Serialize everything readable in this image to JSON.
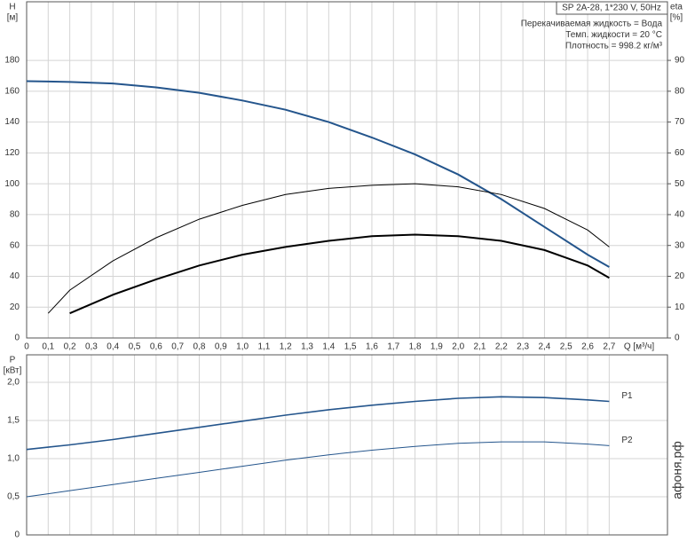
{
  "chart_data": [
    {
      "type": "line",
      "y_label": "H",
      "y_unit": "[м]",
      "y2_label": "eta",
      "y2_unit": "[%]",
      "x_label": "Q [м³/ч]",
      "header": "SP 2A-28, 1*230 V, 50Hz",
      "notes": [
        "Перекачиваемая жидкость = Вода",
        "Темп. жидкости = 20 °C",
        "Плотность = 998.2 кг/м³"
      ],
      "xlim": [
        0,
        2.97
      ],
      "ylim": [
        0,
        218
      ],
      "y2lim": [
        0,
        109
      ],
      "grid": true,
      "xticks": [
        0,
        {
          "value": 0.1,
          "label": "0,1"
        },
        {
          "value": 0.2,
          "label": "0,2"
        },
        {
          "value": 0.3,
          "label": "0,3"
        },
        {
          "value": 0.4,
          "label": "0,4"
        },
        {
          "value": 0.5,
          "label": "0,5"
        },
        {
          "value": 0.6,
          "label": "0,6"
        },
        {
          "value": 0.7,
          "label": "0,7"
        },
        {
          "value": 0.8,
          "label": "0,8"
        },
        {
          "value": 0.9,
          "label": "0,9"
        },
        {
          "value": 1.0,
          "label": "1,0"
        },
        {
          "value": 1.1,
          "label": "1,1"
        },
        {
          "value": 1.2,
          "label": "1,2"
        },
        {
          "value": 1.3,
          "label": "1,3"
        },
        {
          "value": 1.4,
          "label": "1,4"
        },
        {
          "value": 1.5,
          "label": "1,5"
        },
        {
          "value": 1.6,
          "label": "1,6"
        },
        {
          "value": 1.7,
          "label": "1,7"
        },
        {
          "value": 1.8,
          "label": "1,8"
        },
        {
          "value": 1.9,
          "label": "1,9"
        },
        {
          "value": 2.0,
          "label": "2,0"
        },
        {
          "value": 2.1,
          "label": "2,1"
        },
        {
          "value": 2.2,
          "label": "2,2"
        },
        {
          "value": 2.3,
          "label": "2,3"
        },
        {
          "value": 2.4,
          "label": "2,4"
        },
        {
          "value": 2.5,
          "label": "2,5"
        },
        {
          "value": 2.6,
          "label": "2,6"
        },
        {
          "value": 2.7,
          "label": "2,7"
        }
      ],
      "yticks": [
        0,
        20,
        40,
        60,
        80,
        100,
        120,
        140,
        160,
        180
      ],
      "y2ticks": [
        0,
        10,
        20,
        30,
        40,
        50,
        60,
        70,
        80,
        90
      ],
      "x": [
        0,
        0.1,
        0.2,
        0.4,
        0.6,
        0.8,
        1.0,
        1.2,
        1.4,
        1.6,
        1.8,
        2.0,
        2.2,
        2.4,
        2.6,
        2.7
      ],
      "series": [
        {
          "color": "#24558c",
          "width": 2,
          "values": [
            166.5,
            166.3,
            166,
            165,
            162.5,
            159,
            154,
            148,
            140,
            130,
            119,
            106,
            90,
            72,
            54,
            46
          ]
        },
        {
          "color": "#000000",
          "width": 1,
          "axis": "y2",
          "values": [
            null,
            8,
            15.5,
            25,
            32.5,
            38.5,
            43,
            46.5,
            48.5,
            49.5,
            50,
            49,
            46.5,
            42,
            35,
            29.5
          ]
        },
        {
          "color": "#000000",
          "width": 2,
          "axis": "y2",
          "values": [
            null,
            null,
            8,
            14,
            19,
            23.5,
            27,
            29.5,
            31.5,
            33,
            33.5,
            33,
            31.5,
            28.5,
            23.5,
            19.5
          ]
        }
      ]
    },
    {
      "type": "line",
      "y_label": "P",
      "y_unit": "[кВт]",
      "xlim": [
        0,
        2.97
      ],
      "ylim": [
        0,
        2.36
      ],
      "grid": true,
      "yticks": [
        0,
        {
          "value": 0.5,
          "label": "0,5"
        },
        {
          "value": 1.0,
          "label": "1,0"
        },
        {
          "value": 1.5,
          "label": "1,5"
        },
        {
          "value": 2.0,
          "label": "2,0"
        }
      ],
      "x": [
        0,
        0.1,
        0.2,
        0.4,
        0.6,
        0.8,
        1.0,
        1.2,
        1.4,
        1.6,
        1.8,
        2.0,
        2.2,
        2.4,
        2.6,
        2.7
      ],
      "series": [
        {
          "name": "P1",
          "color": "#24558c",
          "width": 1.6,
          "values": [
            1.12,
            1.15,
            1.18,
            1.25,
            1.33,
            1.41,
            1.49,
            1.57,
            1.64,
            1.7,
            1.75,
            1.79,
            1.81,
            1.8,
            1.77,
            1.75
          ]
        },
        {
          "name": "P2",
          "color": "#24558c",
          "width": 1,
          "values": [
            0.5,
            0.54,
            0.58,
            0.66,
            0.74,
            0.82,
            0.9,
            0.98,
            1.05,
            1.11,
            1.16,
            1.2,
            1.22,
            1.22,
            1.19,
            1.17
          ]
        }
      ]
    }
  ],
  "watermark": "афоня.рф"
}
